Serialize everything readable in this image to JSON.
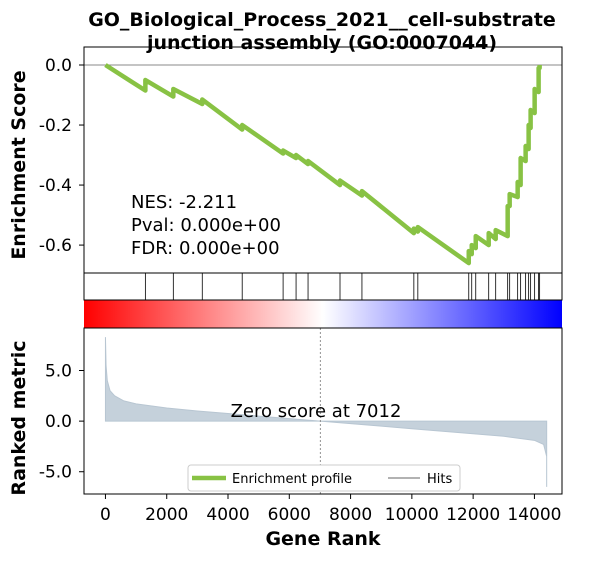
{
  "chart_data": [
    {
      "type": "line",
      "title": [
        "GO_Biological_Process_2021__cell-substrate",
        "junction assembly (GO:0007044)"
      ],
      "ylabel": "Enrichment Score",
      "annotations": [
        "NES: -2.211",
        "Pval: 0.000e+00",
        "FDR: 0.000e+00"
      ],
      "xlim": [
        -700,
        14900
      ],
      "ylim": [
        -0.693,
        0.06
      ],
      "yticks": [
        {
          "value": 0,
          "label": "0.0"
        },
        {
          "value": -0.2,
          "label": "-0.2"
        },
        {
          "value": -0.4,
          "label": "-0.4"
        },
        {
          "value": -0.6,
          "label": "-0.6"
        }
      ],
      "zero_line": true,
      "series": [
        {
          "name": "Enrichment profile",
          "color": "#88c244",
          "x": [
            0,
            1303,
            1303,
            2215,
            2215,
            3160,
            3160,
            4463,
            4463,
            5798,
            5798,
            6221,
            6221,
            6612,
            6612,
            7655,
            7655,
            8371,
            8371,
            10065,
            10065,
            10195,
            10195,
            11857,
            11857,
            11954,
            11954,
            12085,
            12085,
            12508,
            12508,
            12736,
            12736,
            13127,
            13127,
            13192,
            13192,
            13453,
            13453,
            13550,
            13550,
            13713,
            13713,
            13811,
            13811,
            13876,
            13876,
            14007,
            14007,
            14137,
            14137,
            14170,
            14170
          ],
          "values": [
            0,
            -0.085,
            -0.05,
            -0.105,
            -0.08,
            -0.13,
            -0.115,
            -0.215,
            -0.2,
            -0.295,
            -0.285,
            -0.31,
            -0.3,
            -0.33,
            -0.32,
            -0.4,
            -0.385,
            -0.435,
            -0.42,
            -0.56,
            -0.545,
            -0.555,
            -0.54,
            -0.66,
            -0.62,
            -0.63,
            -0.6,
            -0.61,
            -0.57,
            -0.6,
            -0.56,
            -0.58,
            -0.55,
            -0.57,
            -0.47,
            -0.47,
            -0.43,
            -0.44,
            -0.39,
            -0.4,
            -0.31,
            -0.32,
            -0.27,
            -0.28,
            -0.2,
            -0.21,
            -0.15,
            -0.16,
            -0.08,
            -0.09,
            -0.01,
            -0.01,
            0
          ]
        }
      ]
    },
    {
      "type": "hits",
      "name": "Hits",
      "color": "#000000",
      "xlim": [
        -700,
        14900
      ],
      "x": [
        1303,
        2215,
        3160,
        4463,
        5798,
        6221,
        6612,
        7655,
        8371,
        10065,
        10195,
        11857,
        11954,
        12085,
        12508,
        12736,
        13127,
        13192,
        13453,
        13550,
        13713,
        13811,
        13876,
        14007,
        14137,
        14170
      ]
    },
    {
      "type": "area",
      "ylabel": "Ranked metric",
      "xlabel": "Gene Rank",
      "annotation": "Zero score at 7012",
      "zero_score_rank": 7012,
      "color": "#c5d1db",
      "xlim": [
        -700,
        14900
      ],
      "xticks": [
        0,
        2000,
        4000,
        6000,
        8000,
        10000,
        12000,
        14000
      ],
      "ylim": [
        -7.2,
        9.2
      ],
      "yticks": [
        {
          "value": 5,
          "label": "5.0"
        },
        {
          "value": 0,
          "label": "0.0"
        },
        {
          "value": -5,
          "label": "-5.0"
        }
      ],
      "x": [
        0,
        20,
        60,
        150,
        300,
        600,
        1000,
        2000,
        3000,
        4000,
        5000,
        6000,
        7012,
        8000,
        9000,
        10000,
        11000,
        12000,
        13000,
        14000,
        14300,
        14400,
        14400
      ],
      "values": [
        8.3,
        5.5,
        4.0,
        3.0,
        2.5,
        2.0,
        1.7,
        1.3,
        1.0,
        0.75,
        0.5,
        0.25,
        0,
        -0.25,
        -0.5,
        -0.75,
        -1.0,
        -1.25,
        -1.5,
        -1.9,
        -2.3,
        -3.5,
        -6.5
      ]
    }
  ]
}
